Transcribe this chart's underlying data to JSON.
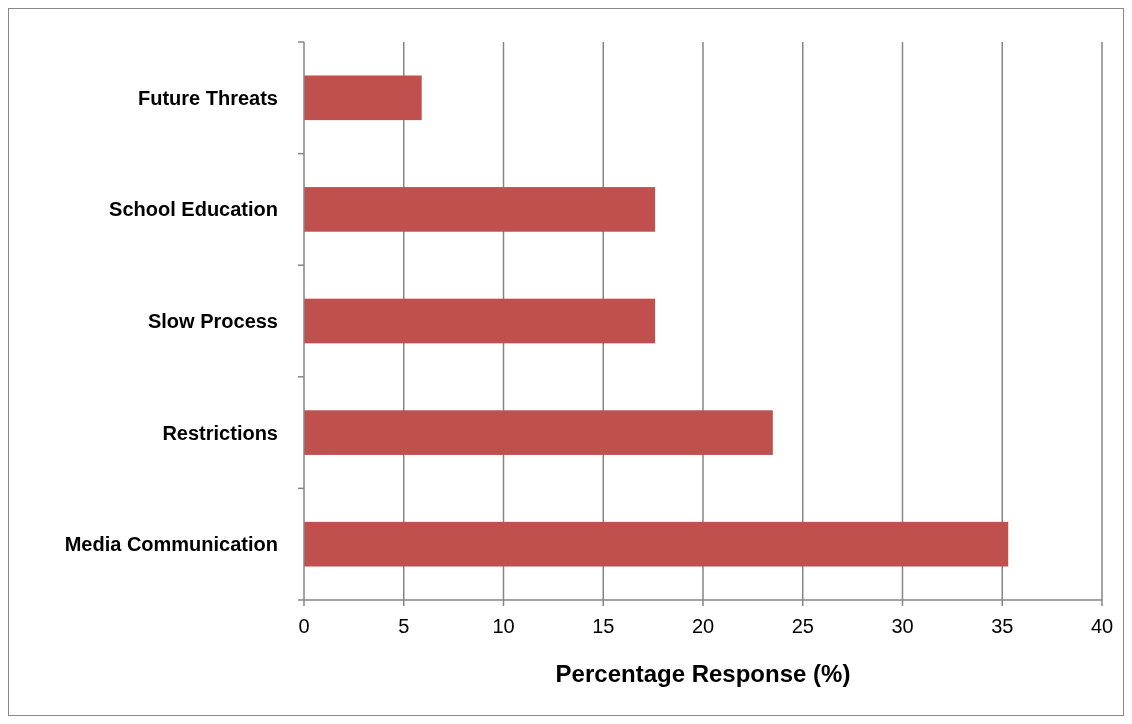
{
  "chart_data": {
    "type": "bar",
    "orientation": "horizontal",
    "xlabel": "Percentage Response (%)",
    "categories": [
      "Future Threats",
      "School Education",
      "Slow Process",
      "Restrictions",
      "Media Communication"
    ],
    "values": [
      5.9,
      17.6,
      17.6,
      23.5,
      35.3
    ],
    "color": "#c0504d",
    "xlim": [
      0,
      40
    ],
    "xticks": [
      0,
      5,
      10,
      15,
      20,
      25,
      30,
      35,
      40
    ],
    "grid": "x"
  }
}
